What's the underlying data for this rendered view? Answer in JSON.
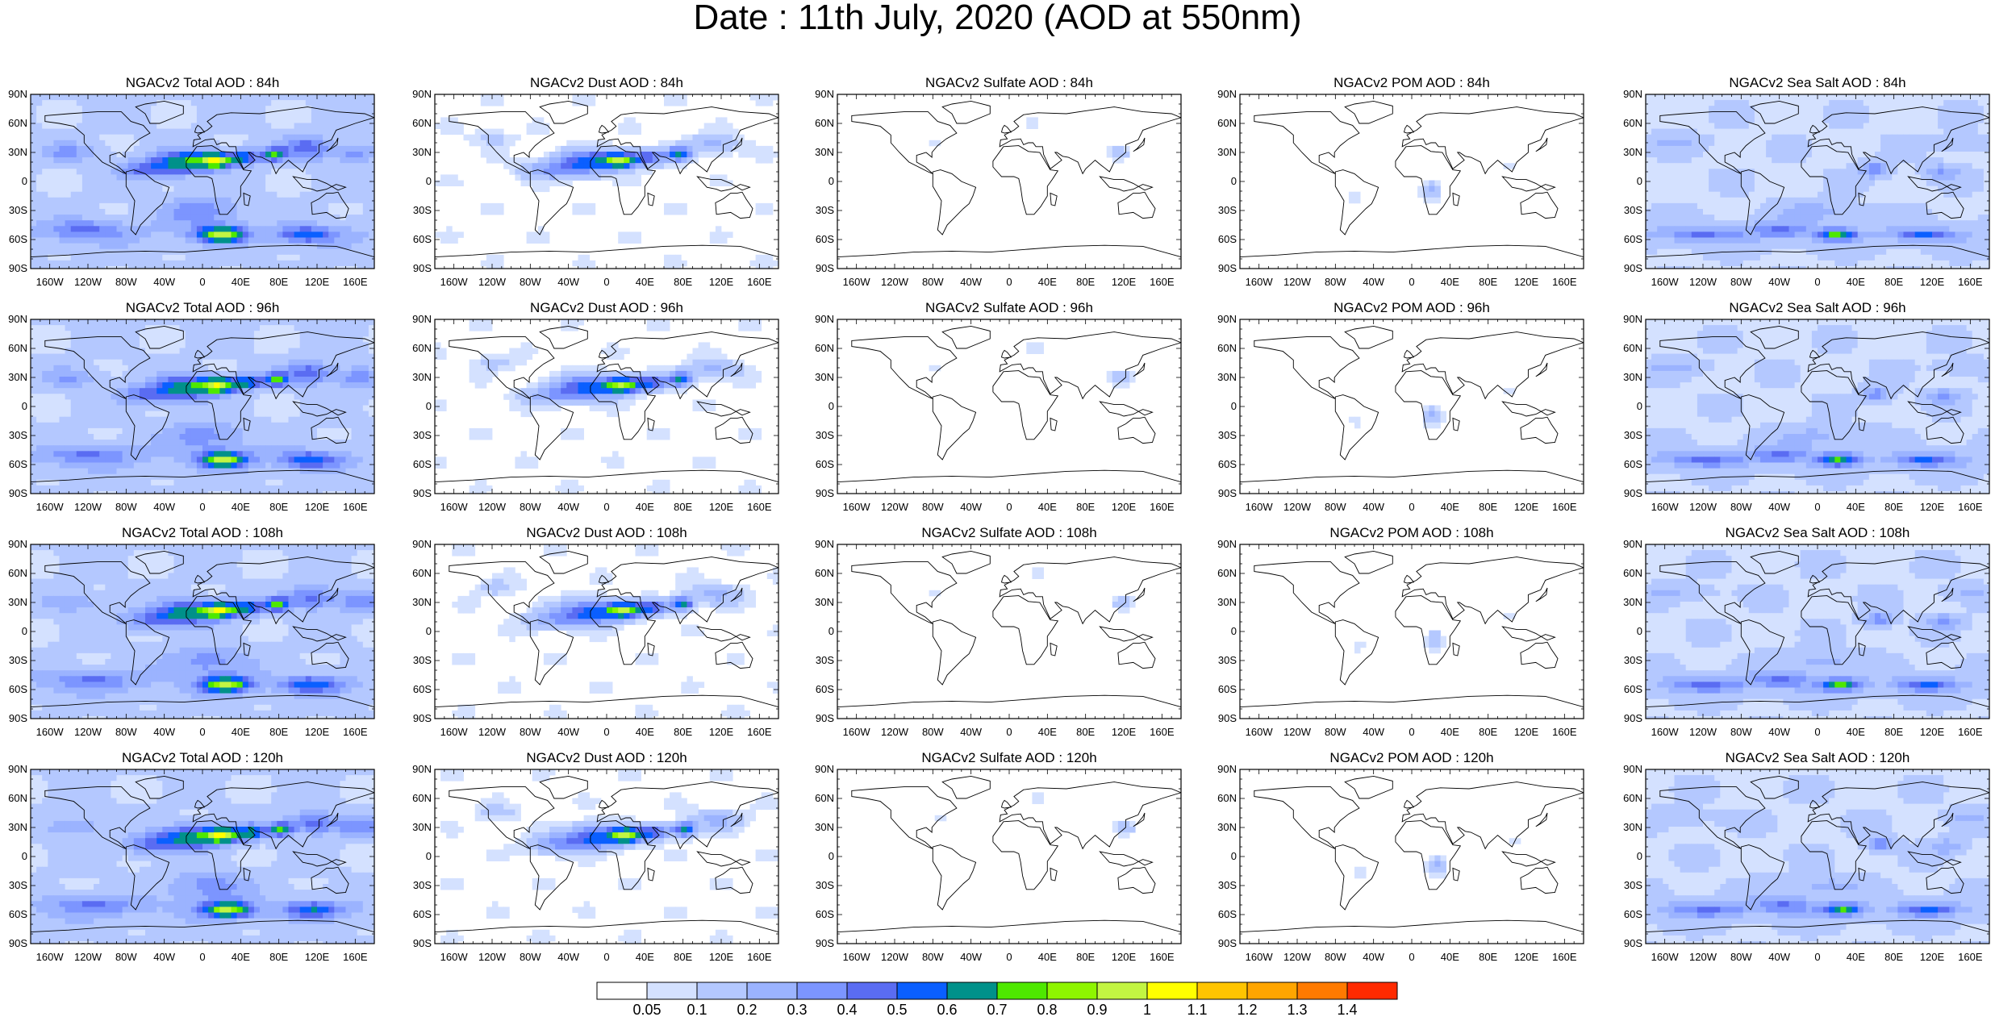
{
  "title": "Date : 11th July, 2020 (AOD at 550nm)",
  "lat_ticks": [
    "90N",
    "60N",
    "30N",
    "0",
    "30S",
    "60S",
    "90S"
  ],
  "lon_ticks": [
    "160W",
    "120W",
    "80W",
    "40W",
    "0",
    "40E",
    "80E",
    "120E",
    "160E"
  ],
  "columns": [
    {
      "type": "total",
      "label": "NGACv2 Total AOD"
    },
    {
      "type": "dust",
      "label": "NGACv2 Dust AOD"
    },
    {
      "type": "sulfate",
      "label": "NGACv2 Sulfate AOD"
    },
    {
      "type": "pom",
      "label": "NGACv2 POM AOD"
    },
    {
      "type": "seasalt",
      "label": "NGACv2 Sea Salt AOD"
    }
  ],
  "panels": [
    [
      "NGACv2 Total AOD : 84h",
      "NGACv2 Dust AOD : 84h",
      "NGACv2 Sulfate AOD : 84h",
      "NGACv2 POM AOD : 84h",
      "NGACv2 Sea Salt AOD : 84h"
    ],
    [
      "NGACv2 Total AOD : 96h",
      "NGACv2 Dust AOD : 96h",
      "NGACv2 Sulfate AOD : 96h",
      "NGACv2 POM AOD : 96h",
      "NGACv2 Sea Salt AOD : 96h"
    ],
    [
      "NGACv2 Total AOD : 108h",
      "NGACv2 Dust AOD : 108h",
      "NGACv2 Sulfate AOD : 108h",
      "NGACv2 POM AOD : 108h",
      "NGACv2 Sea Salt AOD : 108h"
    ],
    [
      "NGACv2 Total AOD : 120h",
      "NGACv2 Dust AOD : 120h",
      "NGACv2 Sulfate AOD : 120h",
      "NGACv2 POM AOD : 120h",
      "NGACv2 Sea Salt  AOD : 120h"
    ]
  ],
  "forecast_hours": [
    "84h",
    "96h",
    "108h",
    "120h"
  ],
  "colorbar": {
    "labels": [
      "0.05",
      "0.1",
      "0.2",
      "0.3",
      "0.4",
      "0.5",
      "0.6",
      "0.7",
      "0.8",
      "0.9",
      "1",
      "1.1",
      "1.2",
      "1.3",
      "1.4"
    ],
    "colors": [
      "#ffffff",
      "#d4e1ff",
      "#b4c8ff",
      "#9bb3ff",
      "#7c95ff",
      "#5a6cf2",
      "#0a5fff",
      "#00918a",
      "#4ee800",
      "#8ef500",
      "#c2f542",
      "#ffff00",
      "#ffc400",
      "#ffa500",
      "#ff7a00",
      "#ff2a00"
    ]
  }
}
